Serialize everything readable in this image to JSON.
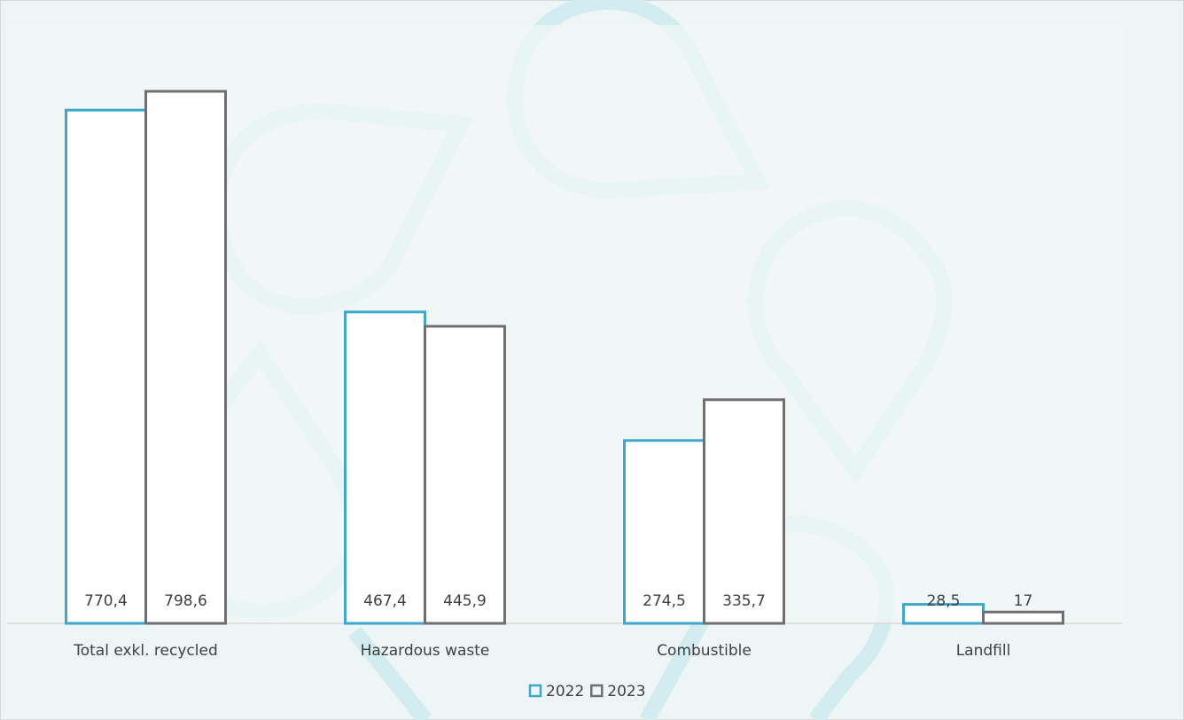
{
  "chart_data": {
    "type": "bar",
    "categories": [
      "Total exkl. recycled",
      "Hazardous waste",
      "Combustible",
      "Landfill"
    ],
    "series": [
      {
        "name": "2022",
        "color": "#3ea8cc",
        "values": [
          770.4,
          467.4,
          274.5,
          28.5
        ],
        "value_labels": [
          "770,4",
          "467,4",
          "274,5",
          "28,5"
        ]
      },
      {
        "name": "2023",
        "color": "#6f6f6f",
        "values": [
          798.6,
          445.9,
          335.7,
          17
        ],
        "value_labels": [
          "798,6",
          "445,9",
          "335,7",
          "17"
        ]
      }
    ]
  }
}
